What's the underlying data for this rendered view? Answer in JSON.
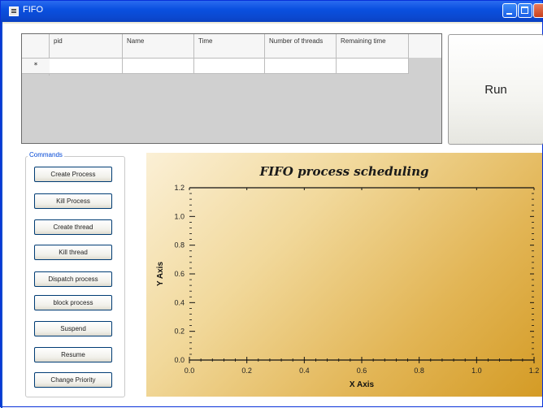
{
  "window": {
    "title": "FIFO"
  },
  "grid": {
    "columns": [
      "pid",
      "Name",
      "Time",
      "Number of threads",
      "Remaining time"
    ],
    "new_row_marker": "*"
  },
  "run_button": {
    "label": "Run"
  },
  "commands": {
    "legend": "Commands",
    "buttons": [
      "Create Process",
      "Kill Process",
      "Create thread",
      "Kill thread",
      "Dispatch process",
      "block process",
      "Suspend",
      "Resume",
      "Change Priority"
    ]
  },
  "chart_data": {
    "type": "line",
    "title": "FIFO process scheduling",
    "xlabel": "X Axis",
    "ylabel": "Y Axis",
    "xlim": [
      0.0,
      1.2
    ],
    "ylim": [
      0.0,
      1.2
    ],
    "x_ticks": [
      "0.0",
      "0.2",
      "0.4",
      "0.6",
      "0.8",
      "1.0",
      "1.2"
    ],
    "y_ticks": [
      "0.0",
      "0.2",
      "0.4",
      "0.6",
      "0.8",
      "1.0",
      "1.2"
    ],
    "series": [],
    "background": [
      "#fbf0d6",
      "#d49b25"
    ],
    "grid": false
  }
}
